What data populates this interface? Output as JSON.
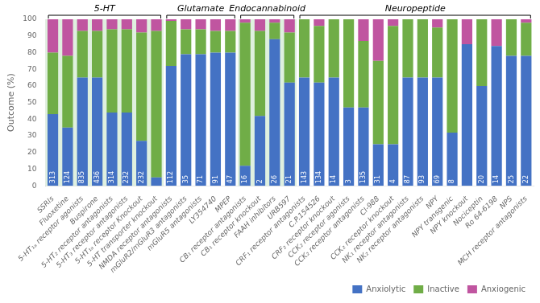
{
  "chart_data": {
    "type": "bar",
    "stacked": true,
    "y_label": "Outcome (%)",
    "categories": [
      "SSRIs",
      "Fluoxetine",
      "5-HT₁ₐ receptor agonists",
      "Buspirone",
      "5-HT₂ receptor antagonists",
      "5-HT₃ receptor antagonists",
      "5-HT₁ₐ receptor Knockout",
      "5-HT transporter knockout",
      "NMDA receptor antagonists",
      "mGluR2/mGluR3 antagonists",
      "mGluR5 antagonists",
      "LY354740",
      "MPEP",
      "CB₁ receptor antagonists",
      "CB₁ receptor knockout",
      "FAAH inhibitors",
      "URB597",
      "CRF₁ receptor antagonists",
      "C.P.154526",
      "CRF₂ receptor knockout",
      "CCK₂ receptor agonists",
      "CCK₂ receptor antagonists",
      "CI-988",
      "CCK₂ receptor knockout",
      "NK₁ receptor antagonists",
      "NK₂ receptor antagonists",
      "NPY",
      "NPY transgenic",
      "NPY knockout",
      "Nociceptin",
      "Ro 64-6198",
      "NPS",
      "MCH receptor antagonists"
    ],
    "series": [
      {
        "name": "Anxiolytic",
        "color": "#4472c4",
        "values": [
          43,
          35,
          65,
          65,
          44,
          44,
          27,
          5,
          72,
          79,
          79,
          80,
          80,
          12,
          42,
          88,
          62,
          65,
          62,
          65,
          47,
          47,
          25,
          25,
          65,
          65,
          65,
          32,
          85,
          60,
          84,
          78,
          78
        ]
      },
      {
        "name": "Inactive",
        "color": "#70ad47",
        "values": [
          37,
          43,
          28,
          28,
          50,
          50,
          65,
          88,
          27,
          15,
          15,
          13,
          13,
          86,
          51,
          10,
          30,
          35,
          34,
          35,
          53,
          40,
          50,
          71,
          35,
          35,
          30,
          68,
          0,
          40,
          0,
          22,
          20
        ]
      },
      {
        "name": "Anxiogenic",
        "color": "#c055a0",
        "values": [
          20,
          22,
          7,
          7,
          6,
          6,
          8,
          7,
          1,
          6,
          6,
          7,
          7,
          2,
          7,
          2,
          8,
          0,
          4,
          0,
          0,
          13,
          25,
          4,
          0,
          0,
          5,
          0,
          15,
          0,
          16,
          0,
          2
        ]
      }
    ],
    "annotations": [
      {
        "category": "SSRIs",
        "text": "313"
      },
      {
        "category": "Fluoxetine",
        "text": "124"
      },
      {
        "category": "5-HT₁ₐ receptor agonists",
        "text": "835"
      },
      {
        "category": "Buspirone",
        "text": "436"
      },
      {
        "category": "5-HT₂ receptor antagonists",
        "text": "314"
      },
      {
        "category": "5-HT₃ receptor antagonists",
        "text": "232"
      },
      {
        "category": "5-HT₁ₐ receptor Knockout",
        "text": "232"
      },
      {
        "category": "NMDA receptor antagonists",
        "text": "112"
      },
      {
        "category": "mGluR2/mGluR3 antagonists",
        "text": "35"
      },
      {
        "category": "mGluR5 antagonists",
        "text": "71"
      },
      {
        "category": "LY354740",
        "text": "91"
      },
      {
        "category": "MPEP",
        "text": "47"
      },
      {
        "category": "CB₁ receptor antagonists",
        "text": "16"
      },
      {
        "category": "CB₁ receptor knockout",
        "text": "2"
      },
      {
        "category": "FAAH inhibitors",
        "text": "26"
      },
      {
        "category": "URB597",
        "text": "21"
      },
      {
        "category": "CRF₁ receptor antagonists",
        "text": "143"
      },
      {
        "category": "C.P.154526",
        "text": "134"
      },
      {
        "category": "CRF₂ receptor knockout",
        "text": "14"
      },
      {
        "category": "CCK₂ receptor agonists",
        "text": "3"
      },
      {
        "category": "CCK₂ receptor antagonists",
        "text": "135"
      },
      {
        "category": "CI-988",
        "text": "31"
      },
      {
        "category": "CCK₂ receptor knockout",
        "text": "4"
      },
      {
        "category": "NK₁ receptor antagonists",
        "text": "87"
      },
      {
        "category": "NK₂ receptor antagonists",
        "text": "93"
      },
      {
        "category": "NPY",
        "text": "69"
      },
      {
        "category": "NPY transgenic",
        "text": "8"
      },
      {
        "category": "Nociceptin",
        "text": "20"
      },
      {
        "category": "Ro 64-6198",
        "text": "14"
      },
      {
        "category": "NPS",
        "text": "25"
      },
      {
        "category": "MCH receptor antagonists",
        "text": "22"
      }
    ],
    "groups": [
      {
        "label": "5-HT",
        "from": "SSRIs",
        "to": "5-HT transporter knockout",
        "color": "#dff0df"
      },
      {
        "label": "Glutamate",
        "from": "NMDA receptor antagonists",
        "to": "MPEP",
        "color": "#ffffff"
      },
      {
        "label": "Endocannabinoid",
        "from": "CB₁ receptor antagonists",
        "to": "URB597",
        "color": "#dff0df"
      },
      {
        "label": "Neuropeptide",
        "from": "CRF₁ receptor antagonists",
        "to": "MCH receptor antagonists",
        "color": "#ffffff"
      }
    ],
    "ylim": [
      0,
      100
    ],
    "yticks": [
      0,
      10,
      20,
      30,
      40,
      50,
      60,
      70,
      80,
      90,
      100
    ],
    "grid": false,
    "legend": "lower right"
  }
}
